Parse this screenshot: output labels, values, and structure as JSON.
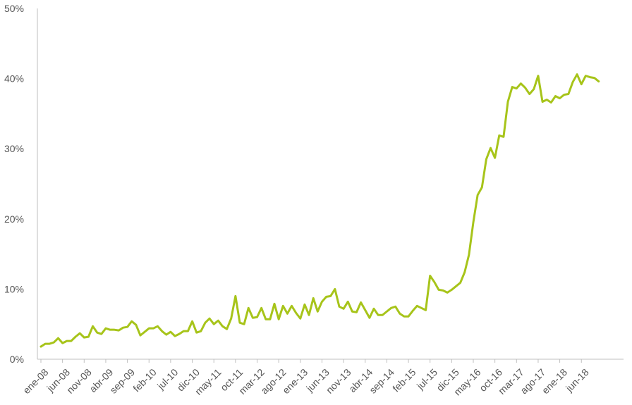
{
  "chart_data": {
    "type": "line",
    "title": "",
    "xlabel": "",
    "ylabel": "",
    "grid": false,
    "legend": "none",
    "colors": {
      "line": "#a7c41a",
      "axis": "#bfbfbf",
      "text": "#555555"
    },
    "ylim": [
      0,
      50
    ],
    "yticks": [
      {
        "value": 0,
        "label": "0%"
      },
      {
        "value": 10,
        "label": "10%"
      },
      {
        "value": 20,
        "label": "20%"
      },
      {
        "value": 30,
        "label": "30%"
      },
      {
        "value": 40,
        "label": "40%"
      },
      {
        "value": 50,
        "label": "50%"
      }
    ],
    "x_start": "2008-01",
    "xticks": [
      {
        "date": "2008-01",
        "label": "ene-08"
      },
      {
        "date": "2008-06",
        "label": "jun-08"
      },
      {
        "date": "2008-11",
        "label": "nov-08"
      },
      {
        "date": "2009-04",
        "label": "abr-09"
      },
      {
        "date": "2009-09",
        "label": "sep-09"
      },
      {
        "date": "2010-02",
        "label": "feb-10"
      },
      {
        "date": "2010-07",
        "label": "jul-10"
      },
      {
        "date": "2010-12",
        "label": "dic-10"
      },
      {
        "date": "2011-05",
        "label": "may-11"
      },
      {
        "date": "2011-10",
        "label": "oct-11"
      },
      {
        "date": "2012-03",
        "label": "mar-12"
      },
      {
        "date": "2012-08",
        "label": "ago-12"
      },
      {
        "date": "2013-01",
        "label": "ene-13"
      },
      {
        "date": "2013-06",
        "label": "jun-13"
      },
      {
        "date": "2013-11",
        "label": "nov-13"
      },
      {
        "date": "2014-04",
        "label": "abr-14"
      },
      {
        "date": "2014-09",
        "label": "sep-14"
      },
      {
        "date": "2015-02",
        "label": "feb-15"
      },
      {
        "date": "2015-07",
        "label": "jul-15"
      },
      {
        "date": "2015-12",
        "label": "dic-15"
      },
      {
        "date": "2016-05",
        "label": "may-16"
      },
      {
        "date": "2016-10",
        "label": "oct-16"
      },
      {
        "date": "2017-03",
        "label": "mar-17"
      },
      {
        "date": "2017-08",
        "label": "ago-17"
      },
      {
        "date": "2018-01",
        "label": "ene-18"
      },
      {
        "date": "2018-06",
        "label": "jun-18"
      }
    ],
    "series": [
      {
        "values": [
          1.8,
          2.2,
          2.2,
          2.4,
          3.0,
          2.3,
          2.6,
          2.6,
          3.2,
          3.7,
          3.1,
          3.2,
          4.7,
          3.8,
          3.6,
          4.4,
          4.2,
          4.2,
          4.1,
          4.5,
          4.6,
          5.4,
          4.9,
          3.4,
          3.9,
          4.4,
          4.4,
          4.7,
          4.0,
          3.5,
          3.9,
          3.3,
          3.6,
          4.0,
          4.0,
          5.4,
          3.8,
          4.0,
          5.2,
          5.8,
          5.0,
          5.5,
          4.7,
          4.3,
          5.8,
          9.0,
          5.2,
          5.0,
          7.3,
          5.9,
          6.0,
          7.3,
          5.7,
          5.7,
          7.9,
          5.7,
          7.6,
          6.5,
          7.6,
          6.6,
          5.8,
          7.8,
          6.3,
          8.7,
          6.8,
          8.2,
          8.9,
          9.0,
          10.0,
          7.5,
          7.2,
          8.2,
          6.8,
          6.7,
          8.1,
          7.0,
          5.9,
          7.2,
          6.3,
          6.3,
          6.8,
          7.3,
          7.5,
          6.5,
          6.1,
          6.1,
          6.9,
          7.6,
          7.3,
          7.0,
          11.9,
          11.0,
          9.9,
          9.8,
          9.5,
          9.9,
          10.4,
          10.9,
          12.4,
          14.9,
          19.5,
          23.4,
          24.5,
          28.5,
          30.1,
          28.7,
          31.9,
          31.7,
          36.7,
          38.8,
          38.6,
          39.3,
          38.7,
          37.8,
          38.5,
          40.4,
          36.7,
          37.0,
          36.6,
          37.5,
          37.2,
          37.7,
          37.8,
          39.5,
          40.6,
          39.2,
          40.4,
          40.2,
          40.1,
          39.6
        ]
      }
    ]
  }
}
